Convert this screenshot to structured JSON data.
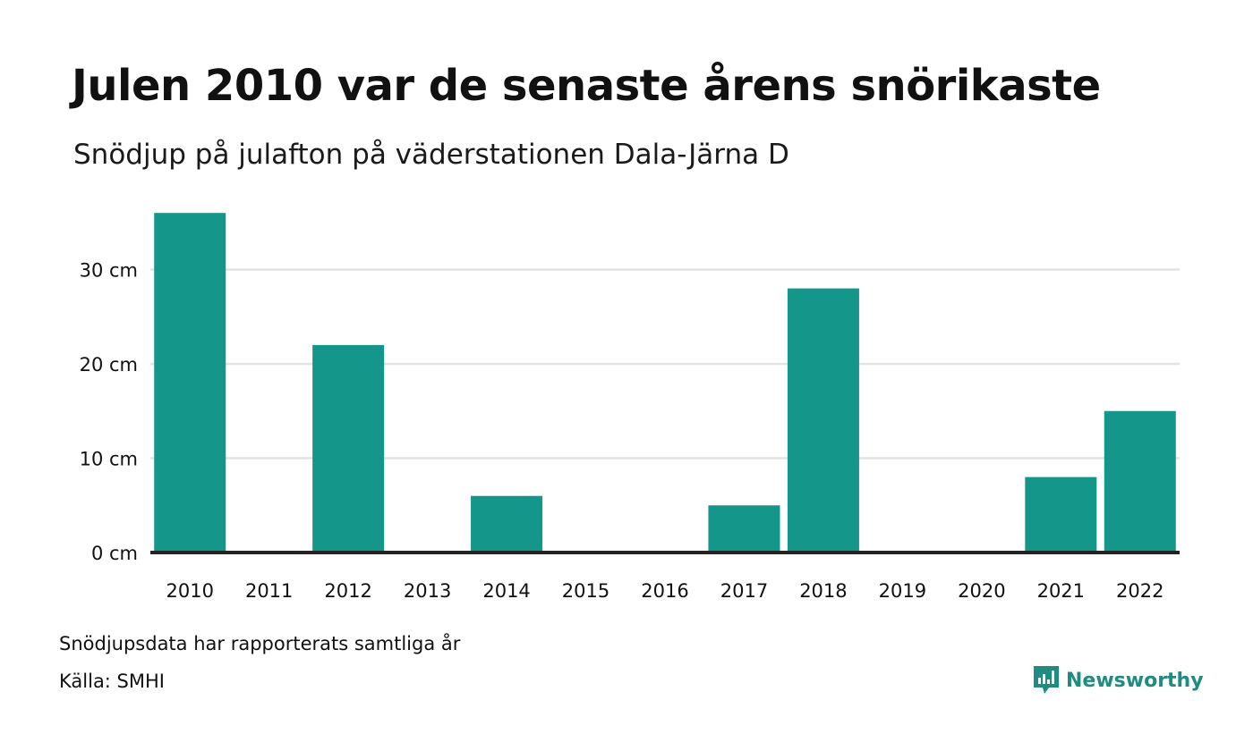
{
  "header": {
    "title": "Julen 2010 var de senaste årens snörikaste",
    "subtitle": "Snödjup på julafton på väderstationen Dala-Järna D"
  },
  "footer": {
    "note": "Snödjupsdata har rapporterats samtliga år",
    "source": "Källa: SMHI",
    "brand_name": "Newsworthy"
  },
  "colors": {
    "bar": "#14968A",
    "brand": "#1E8C80",
    "grid": "#E3E3E3",
    "baseline": "#222222",
    "text": "#111111"
  },
  "icons": {
    "brand_logo": "newsworthy-logo-icon"
  },
  "chart_data": {
    "type": "bar",
    "categories": [
      "2010",
      "2011",
      "2012",
      "2013",
      "2014",
      "2015",
      "2016",
      "2017",
      "2018",
      "2019",
      "2020",
      "2021",
      "2022"
    ],
    "values": [
      36,
      0,
      22,
      0,
      6,
      0,
      0,
      5,
      28,
      0,
      0,
      8,
      15
    ],
    "ylim": [
      0,
      36
    ],
    "yticks": [
      0,
      10,
      20,
      30
    ],
    "ytick_labels": [
      "0 cm",
      "10 cm",
      "20 cm",
      "30 cm"
    ],
    "grid": true,
    "legend": "none"
  }
}
